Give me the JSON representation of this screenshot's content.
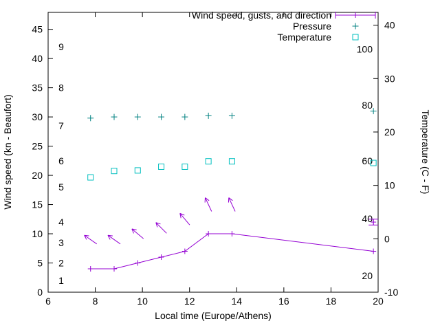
{
  "chart_data": {
    "type": "line",
    "x_axis": {
      "label": "Local time (Europe/Athens)",
      "min": 6,
      "max": 20,
      "ticks": [
        6,
        8,
        10,
        12,
        14,
        16,
        18,
        20
      ]
    },
    "y_left": {
      "label": "Wind speed (kn - Beaufort)",
      "min": 0,
      "max": 47.9,
      "ticks": [
        0,
        5,
        10,
        15,
        20,
        25,
        30,
        35,
        40,
        45
      ],
      "beaufort_labels": [
        {
          "label": "1",
          "kn": 2
        },
        {
          "label": "2",
          "kn": 5
        },
        {
          "label": "3",
          "kn": 8.5
        },
        {
          "label": "4",
          "kn": 12
        },
        {
          "label": "5",
          "kn": 18
        },
        {
          "label": "6",
          "kn": 22.5
        },
        {
          "label": "7",
          "kn": 28.5
        },
        {
          "label": "8",
          "kn": 35
        },
        {
          "label": "9",
          "kn": 42
        }
      ]
    },
    "y_right": {
      "label": "Temperature (C - F)",
      "min": -10,
      "max": 42.4,
      "ticks": [
        -10,
        0,
        10,
        20,
        30,
        40
      ],
      "fahrenheit_labels": [
        {
          "label": "20",
          "c": -6.9
        },
        {
          "label": "40",
          "c": 3.8
        },
        {
          "label": "60",
          "c": 14.6
        },
        {
          "label": "80",
          "c": 25.0
        },
        {
          "label": "100",
          "c": 35.5
        }
      ]
    },
    "legend": [
      {
        "label": "Wind speed, gusts, and direction",
        "color": "#9400d3",
        "marker": "errorbar-line"
      },
      {
        "label": "Pressure",
        "color": "#008080",
        "marker": "plus"
      },
      {
        "label": "Temperature",
        "color": "#00bfbf",
        "marker": "open-square"
      }
    ],
    "x": [
      7.8,
      8.8,
      9.8,
      10.8,
      11.8,
      12.8,
      13.8,
      19.8
    ],
    "series": [
      {
        "name": "wind_speed_kn",
        "axis": "left",
        "color": "#9400d3",
        "values": [
          4,
          4,
          5,
          6,
          7,
          10,
          10,
          7
        ]
      },
      {
        "name": "wind_gust_kn_with_direction_arrows",
        "axis": "left",
        "color": "#9400d3",
        "values": [
          9,
          9,
          10,
          11,
          12.5,
          15,
          15,
          12
        ],
        "arrow_angles_deg": [
          145,
          145,
          140,
          135,
          130,
          115,
          115,
          null
        ]
      },
      {
        "name": "pressure_plotted_on_left_axis_units",
        "axis": "left",
        "color": "#008080",
        "values": [
          29.8,
          30,
          30,
          30,
          30,
          30.2,
          30.2,
          31
        ]
      },
      {
        "name": "temperature_c",
        "axis": "right",
        "color": "#00bfbf",
        "values": [
          11.5,
          12.7,
          12.8,
          13.5,
          13.5,
          14.5,
          14.5,
          14.2
        ]
      }
    ]
  }
}
